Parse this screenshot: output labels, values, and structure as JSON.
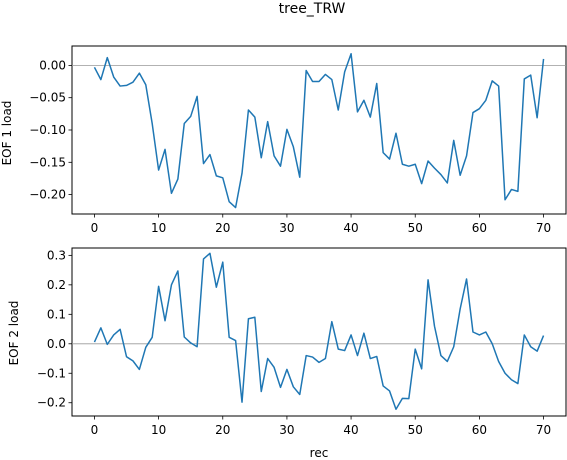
{
  "chart_data": {
    "title": "tree_TRW",
    "xlabel": "rec",
    "type": "line",
    "line_color": "#1f77b4",
    "zero_line_color": "#999999",
    "xlim": [
      -3.5,
      73.5
    ],
    "xticks": [
      0,
      10,
      20,
      30,
      40,
      50,
      60,
      70
    ],
    "x": [
      0,
      1,
      2,
      3,
      4,
      5,
      6,
      7,
      8,
      9,
      10,
      11,
      12,
      13,
      14,
      15,
      16,
      17,
      18,
      19,
      20,
      21,
      22,
      23,
      24,
      25,
      26,
      27,
      28,
      29,
      30,
      31,
      32,
      33,
      34,
      35,
      36,
      37,
      38,
      39,
      40,
      41,
      42,
      43,
      44,
      45,
      46,
      47,
      48,
      49,
      50,
      51,
      52,
      53,
      54,
      55,
      56,
      57,
      58,
      59,
      60,
      61,
      62,
      63,
      64,
      65,
      66,
      67,
      68,
      69,
      70
    ],
    "subplots": [
      {
        "ylabel": "EOF 1 load",
        "ylim": [
          -0.23,
          0.03
        ],
        "yticks": [
          0.0,
          -0.05,
          -0.1,
          -0.15,
          -0.2
        ],
        "ytick_labels": [
          "0.00",
          "−0.05",
          "−0.10",
          "−0.15",
          "−0.20"
        ],
        "series": [
          {
            "values": [
              -0.003,
              -0.022,
              0.012,
              -0.018,
              -0.032,
              -0.031,
              -0.026,
              -0.012,
              -0.03,
              -0.09,
              -0.162,
              -0.13,
              -0.198,
              -0.176,
              -0.09,
              -0.079,
              -0.048,
              -0.152,
              -0.138,
              -0.171,
              -0.174,
              -0.211,
              -0.22,
              -0.167,
              -0.069,
              -0.08,
              -0.143,
              -0.087,
              -0.14,
              -0.156,
              -0.099,
              -0.126,
              -0.173,
              -0.008,
              -0.025,
              -0.025,
              -0.014,
              -0.022,
              -0.069,
              -0.01,
              0.018,
              -0.072,
              -0.054,
              -0.08,
              -0.028,
              -0.135,
              -0.145,
              -0.105,
              -0.153,
              -0.156,
              -0.153,
              -0.183,
              -0.148,
              -0.159,
              -0.169,
              -0.182,
              -0.116,
              -0.17,
              -0.14,
              -0.073,
              -0.067,
              -0.054,
              -0.024,
              -0.032,
              -0.208,
              -0.192,
              -0.195,
              -0.021,
              -0.015,
              -0.081,
              0.01
            ]
          }
        ]
      },
      {
        "ylabel": "EOF 2 load",
        "ylim": [
          -0.245,
          0.325
        ],
        "yticks": [
          0.3,
          0.2,
          0.1,
          0.0,
          -0.1,
          -0.2
        ],
        "ytick_labels": [
          "0.3",
          "0.2",
          "0.1",
          "0.0",
          "−0.1",
          "−0.2"
        ],
        "series": [
          {
            "values": [
              0.006,
              0.054,
              -0.002,
              0.03,
              0.049,
              -0.044,
              -0.058,
              -0.087,
              -0.012,
              0.022,
              0.195,
              0.078,
              0.2,
              0.247,
              0.023,
              0.003,
              -0.01,
              0.288,
              0.307,
              0.192,
              0.277,
              0.022,
              0.011,
              -0.198,
              0.085,
              0.09,
              -0.162,
              -0.05,
              -0.08,
              -0.148,
              -0.087,
              -0.146,
              -0.172,
              -0.04,
              -0.045,
              -0.063,
              -0.05,
              0.075,
              -0.018,
              -0.023,
              0.03,
              -0.04,
              0.036,
              -0.05,
              -0.043,
              -0.143,
              -0.16,
              -0.222,
              -0.185,
              -0.186,
              -0.018,
              -0.085,
              0.217,
              0.06,
              -0.04,
              -0.06,
              -0.01,
              0.118,
              0.22,
              0.04,
              0.03,
              0.04,
              0.0,
              -0.06,
              -0.1,
              -0.122,
              -0.135,
              0.03,
              -0.01,
              -0.025,
              0.028
            ]
          }
        ]
      }
    ]
  }
}
